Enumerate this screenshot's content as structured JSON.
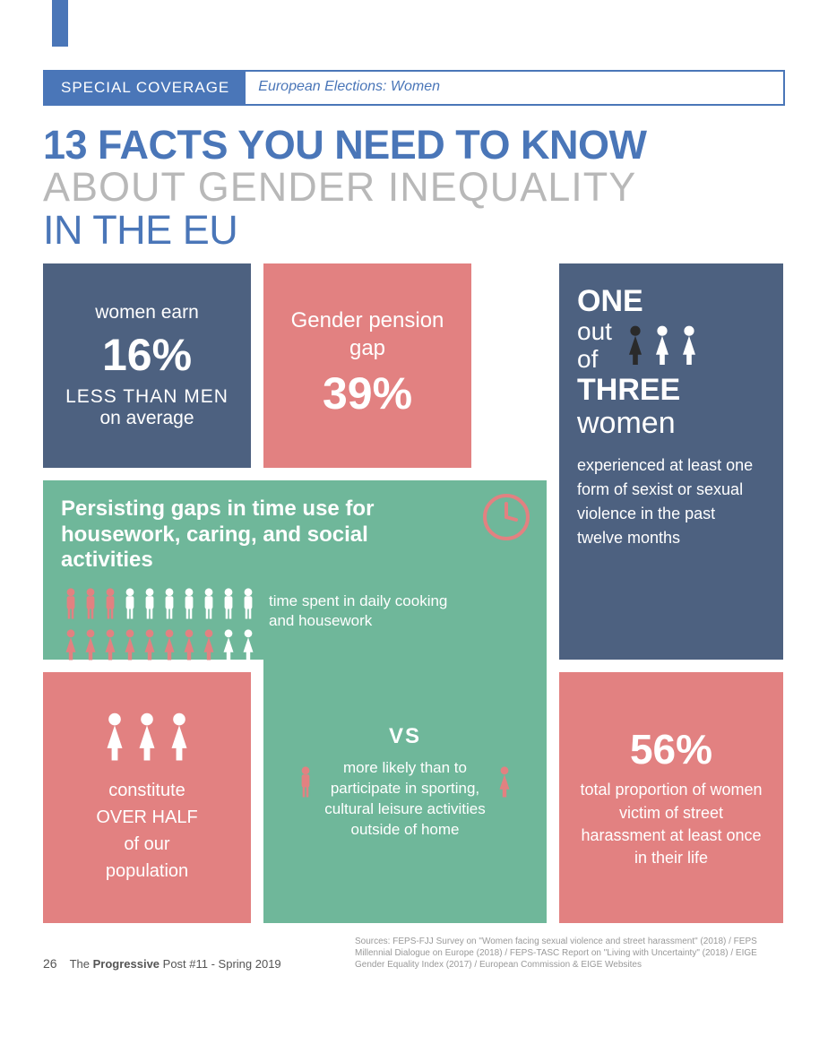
{
  "colors": {
    "blue": "#4a76b8",
    "grey": "#b8b8b8",
    "card_blue": "#4d6180",
    "card_pink": "#e28181",
    "card_teal": "#6fb79a",
    "white": "#ffffff",
    "icon_dark": "#2a2a2a",
    "icon_pink": "#e28181"
  },
  "banner": {
    "left": "SPECIAL COVERAGE",
    "right": "European Elections: Women"
  },
  "headline": {
    "l1": "13 FACTS YOU NEED TO KNOW",
    "l2": "ABOUT GENDER INEQUALITY",
    "l3": "IN THE EU"
  },
  "earn": {
    "pre": "women earn",
    "pct": "16%",
    "post1": "LESS THAN MEN",
    "post2": "on average"
  },
  "pension": {
    "pre": "Gender pension gap",
    "pct": "39%"
  },
  "violence": {
    "l1": "ONE",
    "l2a": "out",
    "l2b": "of",
    "l3": "THREE",
    "l4": "women",
    "body": "experienced at least one form of sexist or sexual violence in the past twelve months",
    "icons": {
      "total": 3,
      "dark": 1
    }
  },
  "timeuse": {
    "title": "Persisting gaps in time use for housework, caring, and social activities",
    "label": "time spent in daily cooking and housework",
    "row1": {
      "pink_men": 3,
      "white_men": 7
    },
    "row2": {
      "pink_women": 8,
      "white_women": 2
    }
  },
  "vs": {
    "vs": "VS",
    "label": "more likely than to participate in sporting, cultural leisure activities outside of home"
  },
  "pop": {
    "line1": "constitute",
    "line2": "OVER HALF",
    "line3": "of our",
    "line4": "population",
    "icons": 3
  },
  "harass": {
    "pct": "56%",
    "body": "total proportion of women victim of street harassment at least once in their life"
  },
  "footer": {
    "page": "26",
    "pub": "The Progressive Post #11 - Spring 2019",
    "src_label": "Sources:",
    "src_body": "FEPS-FJJ Survey on \"Women facing sexual violence and street harassment\" (2018) / FEPS Millennial Dialogue on Europe (2018) / FEPS-TASC Report on \"Living with Uncertainty\" (2018) / EIGE Gender Equality Index (2017) / European Commission & EIGE Websites"
  }
}
